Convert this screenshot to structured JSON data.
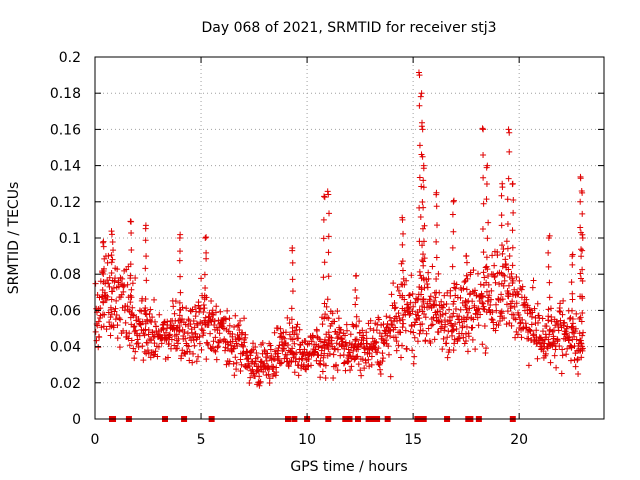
{
  "chart_data": {
    "type": "scatter",
    "title": "Day 068 of 2021, SRMTID for receiver stj3",
    "xlabel": "GPS time / hours",
    "ylabel": "SRMTID / TECUs",
    "xlim": [
      0,
      24
    ],
    "ylim": [
      0,
      0.2
    ],
    "xticks": [
      0,
      5,
      10,
      15,
      20
    ],
    "xtick_labels": [
      "0",
      "5",
      "10",
      "15",
      "20"
    ],
    "yticks": [
      0,
      0.02,
      0.04,
      0.06,
      0.08,
      0.1,
      0.12,
      0.14,
      0.16,
      0.18,
      0.2
    ],
    "ytick_labels": [
      "0",
      "0.02",
      "0.04",
      "0.06",
      "0.08",
      "0.1",
      "0.12",
      "0.14",
      "0.16",
      "0.18",
      "0.2"
    ],
    "grid": true,
    "marker": "+",
    "color": "#e00000",
    "series": [
      {
        "name": "SRMTID",
        "trend": [
          [
            0.0,
            0.05
          ],
          [
            0.5,
            0.07
          ],
          [
            1.0,
            0.065
          ],
          [
            1.5,
            0.06
          ],
          [
            2.0,
            0.055
          ],
          [
            2.5,
            0.05
          ],
          [
            3.0,
            0.048
          ],
          [
            3.5,
            0.045
          ],
          [
            4.0,
            0.05
          ],
          [
            4.5,
            0.045
          ],
          [
            5.0,
            0.055
          ],
          [
            5.5,
            0.05
          ],
          [
            6.0,
            0.045
          ],
          [
            6.5,
            0.042
          ],
          [
            7.0,
            0.038
          ],
          [
            7.5,
            0.03
          ],
          [
            8.0,
            0.03
          ],
          [
            8.5,
            0.035
          ],
          [
            9.0,
            0.04
          ],
          [
            9.5,
            0.038
          ],
          [
            10.0,
            0.035
          ],
          [
            10.5,
            0.038
          ],
          [
            11.0,
            0.045
          ],
          [
            11.5,
            0.042
          ],
          [
            12.0,
            0.04
          ],
          [
            12.5,
            0.038
          ],
          [
            13.0,
            0.04
          ],
          [
            13.5,
            0.042
          ],
          [
            14.0,
            0.05
          ],
          [
            14.5,
            0.06
          ],
          [
            15.0,
            0.055
          ],
          [
            15.5,
            0.065
          ],
          [
            16.0,
            0.06
          ],
          [
            16.5,
            0.055
          ],
          [
            17.0,
            0.058
          ],
          [
            17.5,
            0.055
          ],
          [
            18.0,
            0.06
          ],
          [
            18.5,
            0.07
          ],
          [
            19.0,
            0.075
          ],
          [
            19.5,
            0.07
          ],
          [
            20.0,
            0.062
          ],
          [
            20.5,
            0.055
          ],
          [
            21.0,
            0.045
          ],
          [
            21.5,
            0.045
          ],
          [
            22.0,
            0.05
          ],
          [
            22.5,
            0.045
          ],
          [
            23.0,
            0.04
          ]
        ],
        "peaks": [
          [
            0.4,
            0.098
          ],
          [
            0.8,
            0.102
          ],
          [
            1.7,
            0.109
          ],
          [
            2.4,
            0.107
          ],
          [
            4.0,
            0.1
          ],
          [
            5.2,
            0.1
          ],
          [
            9.3,
            0.093
          ],
          [
            10.8,
            0.123
          ],
          [
            11.0,
            0.124
          ],
          [
            12.3,
            0.079
          ],
          [
            14.5,
            0.11
          ],
          [
            15.3,
            0.19
          ],
          [
            15.4,
            0.18
          ],
          [
            15.45,
            0.16
          ],
          [
            15.5,
            0.14
          ],
          [
            16.1,
            0.125
          ],
          [
            16.9,
            0.12
          ],
          [
            17.5,
            0.09
          ],
          [
            18.3,
            0.16
          ],
          [
            18.5,
            0.14
          ],
          [
            19.2,
            0.13
          ],
          [
            19.5,
            0.16
          ],
          [
            19.7,
            0.13
          ],
          [
            21.4,
            0.1
          ],
          [
            22.5,
            0.09
          ],
          [
            22.9,
            0.133
          ],
          [
            22.95,
            0.126
          ],
          [
            23.0,
            0.1
          ]
        ],
        "zero_markers": [
          0.8,
          0.85,
          1.6,
          3.3,
          4.2,
          5.5,
          9.1,
          9.4,
          10.0,
          11.0,
          11.8,
          12.0,
          12.4,
          12.9,
          13.1,
          13.3,
          13.8,
          15.2,
          15.3,
          15.4,
          15.5,
          16.6,
          17.6,
          17.7,
          18.1,
          19.7
        ]
      }
    ]
  }
}
